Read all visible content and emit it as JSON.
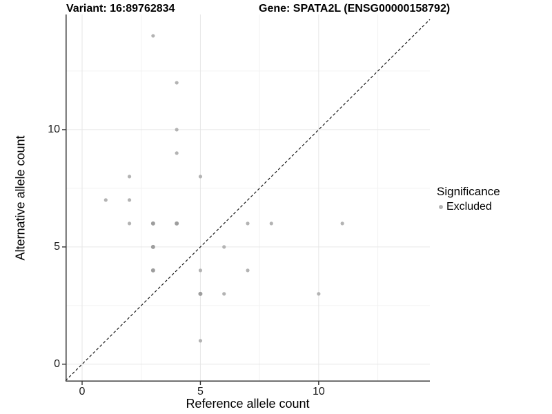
{
  "header": {
    "variant_title": "Variant: 16:89762834",
    "gene_title": "Gene: SPATA2L (ENSG00000158792)"
  },
  "chart_data": {
    "type": "scatter",
    "title_left": "Variant: 16:89762834",
    "title_right": "Gene: SPATA2L (ENSG00000158792)",
    "xlabel": "Reference allele count",
    "ylabel": "Alternative allele count",
    "xlim": [
      -0.7,
      14.7
    ],
    "ylim": [
      -0.74,
      14.91
    ],
    "x_ticks": [
      0,
      5,
      10
    ],
    "y_ticks": [
      0,
      5,
      10
    ],
    "x_minor_gridlines": [
      2.5,
      7.5,
      12.5
    ],
    "y_minor_gridlines": [
      2.5,
      7.5,
      12.5
    ],
    "grid": true,
    "identity_line": {
      "equation": "y = x",
      "style": "dashed",
      "color": "#1a1a1a"
    },
    "series": [
      {
        "name": "Excluded",
        "color": "#b3b3b3",
        "overlap_color": "#9d9d9d",
        "points": [
          [
            3,
            14,
            0
          ],
          [
            4,
            12,
            0
          ],
          [
            4,
            10,
            0
          ],
          [
            4,
            9,
            0
          ],
          [
            2,
            8,
            0
          ],
          [
            5,
            8,
            0
          ],
          [
            1,
            7,
            0
          ],
          [
            2,
            7,
            0
          ],
          [
            2,
            6,
            0
          ],
          [
            3,
            6,
            1
          ],
          [
            4,
            6,
            1
          ],
          [
            7,
            6,
            0
          ],
          [
            8,
            6,
            0
          ],
          [
            11,
            6,
            0
          ],
          [
            3,
            5,
            1
          ],
          [
            6,
            5,
            0
          ],
          [
            3,
            4,
            1
          ],
          [
            5,
            4,
            0
          ],
          [
            7,
            4,
            0
          ],
          [
            5,
            3,
            1
          ],
          [
            6,
            3,
            0
          ],
          [
            10,
            3,
            0
          ],
          [
            5,
            1,
            0
          ]
        ]
      }
    ],
    "legend": {
      "title": "Significance",
      "position": "right",
      "entries": [
        {
          "label": "Excluded",
          "color": "#b3b3b3"
        }
      ]
    }
  },
  "colors": {
    "grid_major": "#e6e6e6",
    "grid_minor": "#f2f2f2",
    "axis_line": "#333333",
    "tick": "#333333"
  }
}
